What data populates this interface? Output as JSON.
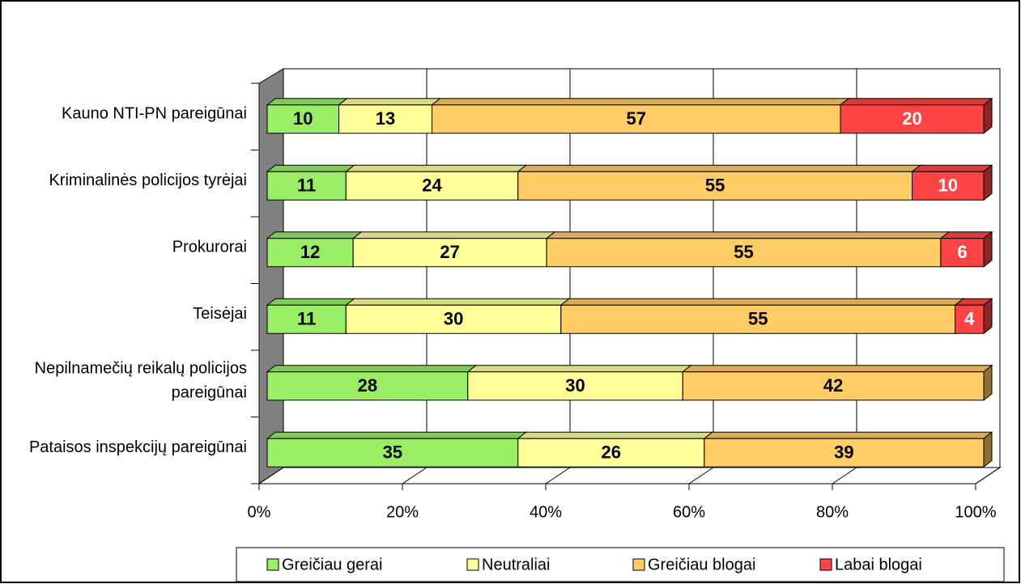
{
  "chart_data": {
    "type": "bar3d_stacked_horizontal",
    "categories": [
      "Kauno NTI-PN pareigūnai",
      "Kriminalinės policijos tyrėjai",
      "Prokurorai",
      "Teisėjai",
      "Nepilnamečių reikalų policijos pareigūnai",
      "Pataisos inspekcijų pareigūnai"
    ],
    "series": [
      {
        "name": "Greičiau gerai",
        "color": "#99ee66",
        "label_color": "#000000",
        "values": [
          10,
          11,
          12,
          11,
          28,
          35
        ]
      },
      {
        "name": "Neutraliai",
        "color": "#ffff99",
        "label_color": "#000000",
        "values": [
          13,
          24,
          27,
          30,
          30,
          26
        ]
      },
      {
        "name": "Greičiau blogai",
        "color": "#ffcc66",
        "label_color": "#000000",
        "values": [
          57,
          55,
          55,
          55,
          42,
          39
        ]
      },
      {
        "name": "Labai blogai",
        "color": "#ff4444",
        "label_color": "#ffffff",
        "values": [
          20,
          10,
          6,
          4,
          null,
          null
        ]
      }
    ],
    "xlim": [
      0,
      100
    ],
    "xticks": [
      {
        "value": 0,
        "label": "0%"
      },
      {
        "value": 20,
        "label": "20%"
      },
      {
        "value": 40,
        "label": "40%"
      },
      {
        "value": 60,
        "label": "60%"
      },
      {
        "value": 80,
        "label": "80%"
      },
      {
        "value": 100,
        "label": "100%"
      }
    ],
    "grid": true,
    "legend": "bottom"
  }
}
